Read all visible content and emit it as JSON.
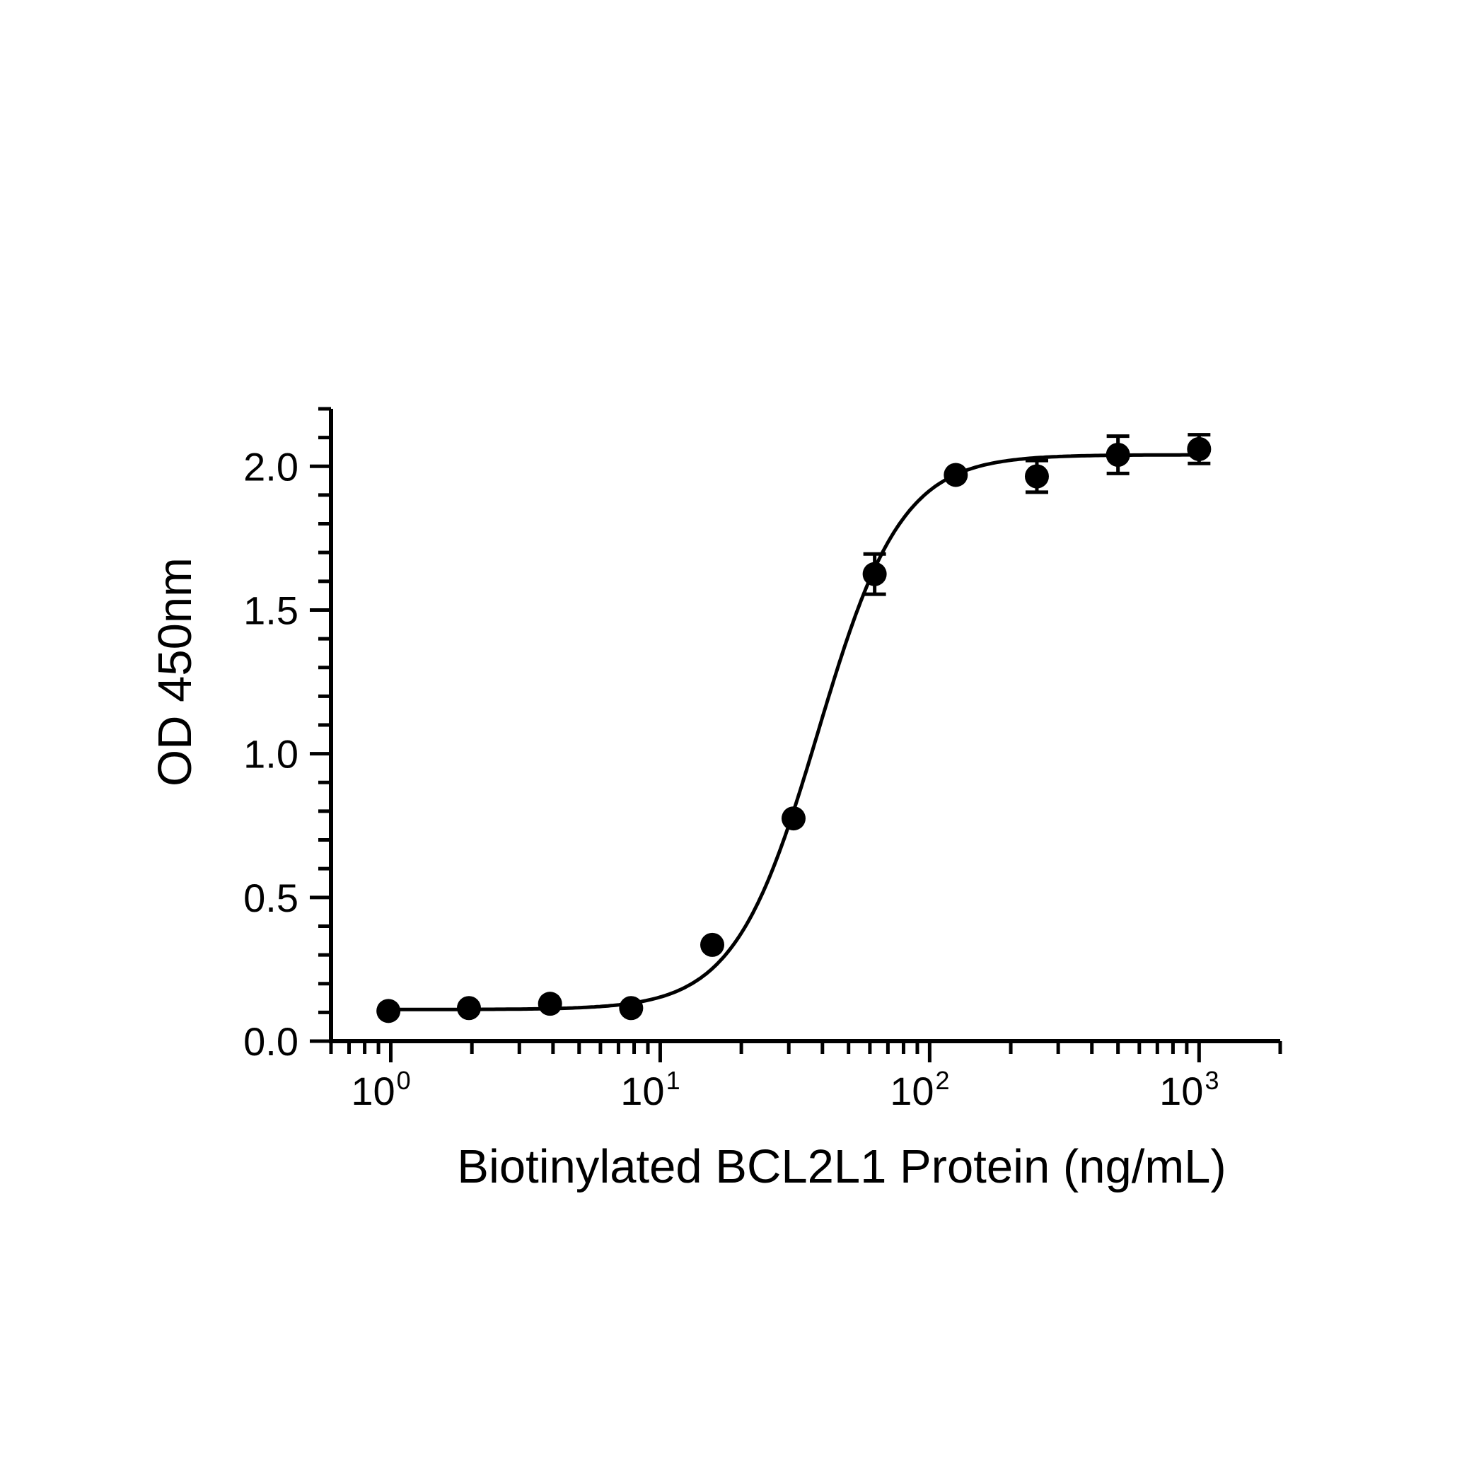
{
  "chart_data": {
    "type": "scatter",
    "title": "",
    "xlabel": "Biotinylated  BCL2L1 Protein (ng/mL)",
    "ylabel": "OD 450nm",
    "x_scale": "log10",
    "xlim": [
      0.6,
      2000
    ],
    "ylim": [
      0,
      2.2
    ],
    "x_ticks": [
      {
        "value": 1,
        "base": "10",
        "exp": "0"
      },
      {
        "value": 10,
        "base": "10",
        "exp": "1"
      },
      {
        "value": 100,
        "base": "10",
        "exp": "2"
      },
      {
        "value": 1000,
        "base": "10",
        "exp": "3"
      }
    ],
    "y_ticks": [
      {
        "value": 0,
        "label": "0.0"
      },
      {
        "value": 0.5,
        "label": "0.5"
      },
      {
        "value": 1,
        "label": "1.0"
      },
      {
        "value": 1.5,
        "label": "1.5"
      },
      {
        "value": 2,
        "label": "2.0"
      }
    ],
    "grid": false,
    "legend": "none",
    "series": [
      {
        "points": [
          {
            "x": 0.98,
            "y": 0.105,
            "err": 0
          },
          {
            "x": 1.95,
            "y": 0.115,
            "err": 0
          },
          {
            "x": 3.9,
            "y": 0.13,
            "err": 0
          },
          {
            "x": 7.8,
            "y": 0.115,
            "err": 0
          },
          {
            "x": 15.6,
            "y": 0.335,
            "err": 0
          },
          {
            "x": 31.25,
            "y": 0.775,
            "err": 0
          },
          {
            "x": 62.5,
            "y": 1.625,
            "err": 0.07
          },
          {
            "x": 125,
            "y": 1.97,
            "err": 0
          },
          {
            "x": 250,
            "y": 1.965,
            "err": 0.055
          },
          {
            "x": 500,
            "y": 2.04,
            "err": 0.065
          },
          {
            "x": 1000,
            "y": 2.06,
            "err": 0.05
          }
        ],
        "fit": {
          "model": "4PL",
          "bottom": 0.11,
          "top": 2.04,
          "ec50": 38.5,
          "hill": 2.8,
          "x_range": [
            0.95,
            1020
          ]
        },
        "color": "#000000"
      }
    ]
  }
}
